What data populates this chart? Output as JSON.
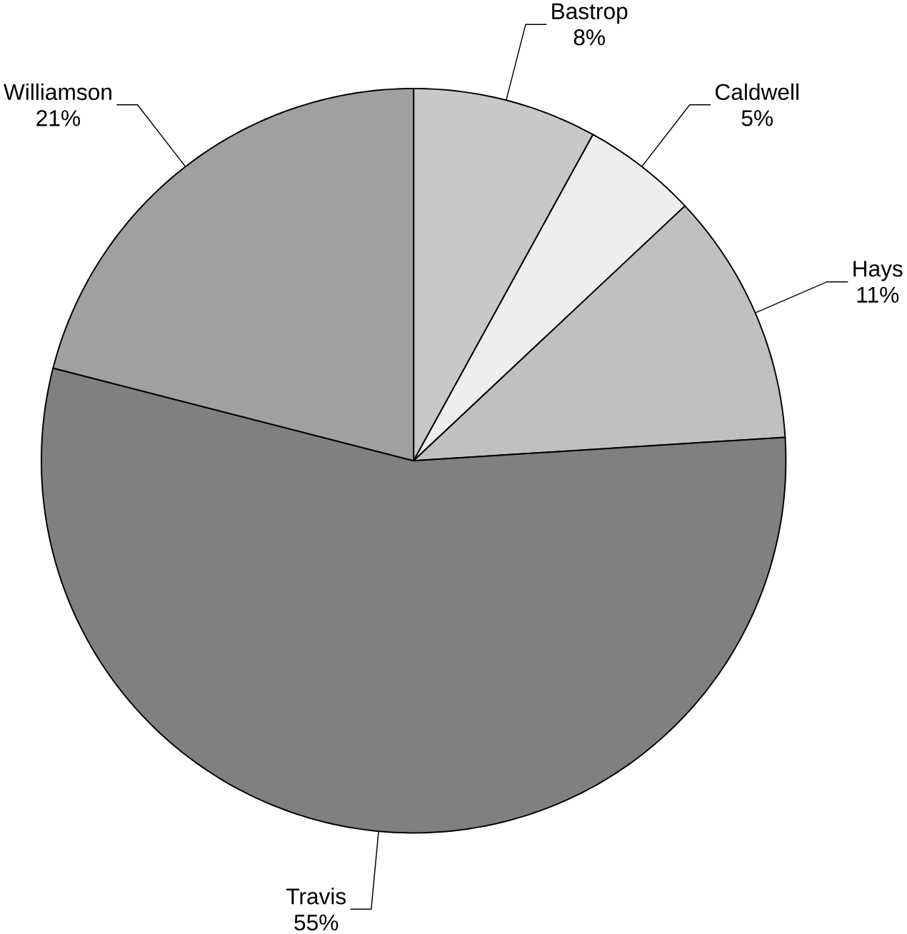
{
  "chart_data": {
    "type": "pie",
    "categories": [
      "Bastrop",
      "Caldwell",
      "Hays",
      "Travis",
      "Williamson"
    ],
    "values": [
      8,
      5,
      11,
      55,
      21
    ],
    "value_labels": [
      "8%",
      "5%",
      "11%",
      "55%",
      "21%"
    ],
    "colors": [
      "#c8c8c8",
      "#eeeeee",
      "#c0c0c0",
      "#808080",
      "#a0a0a0"
    ]
  }
}
